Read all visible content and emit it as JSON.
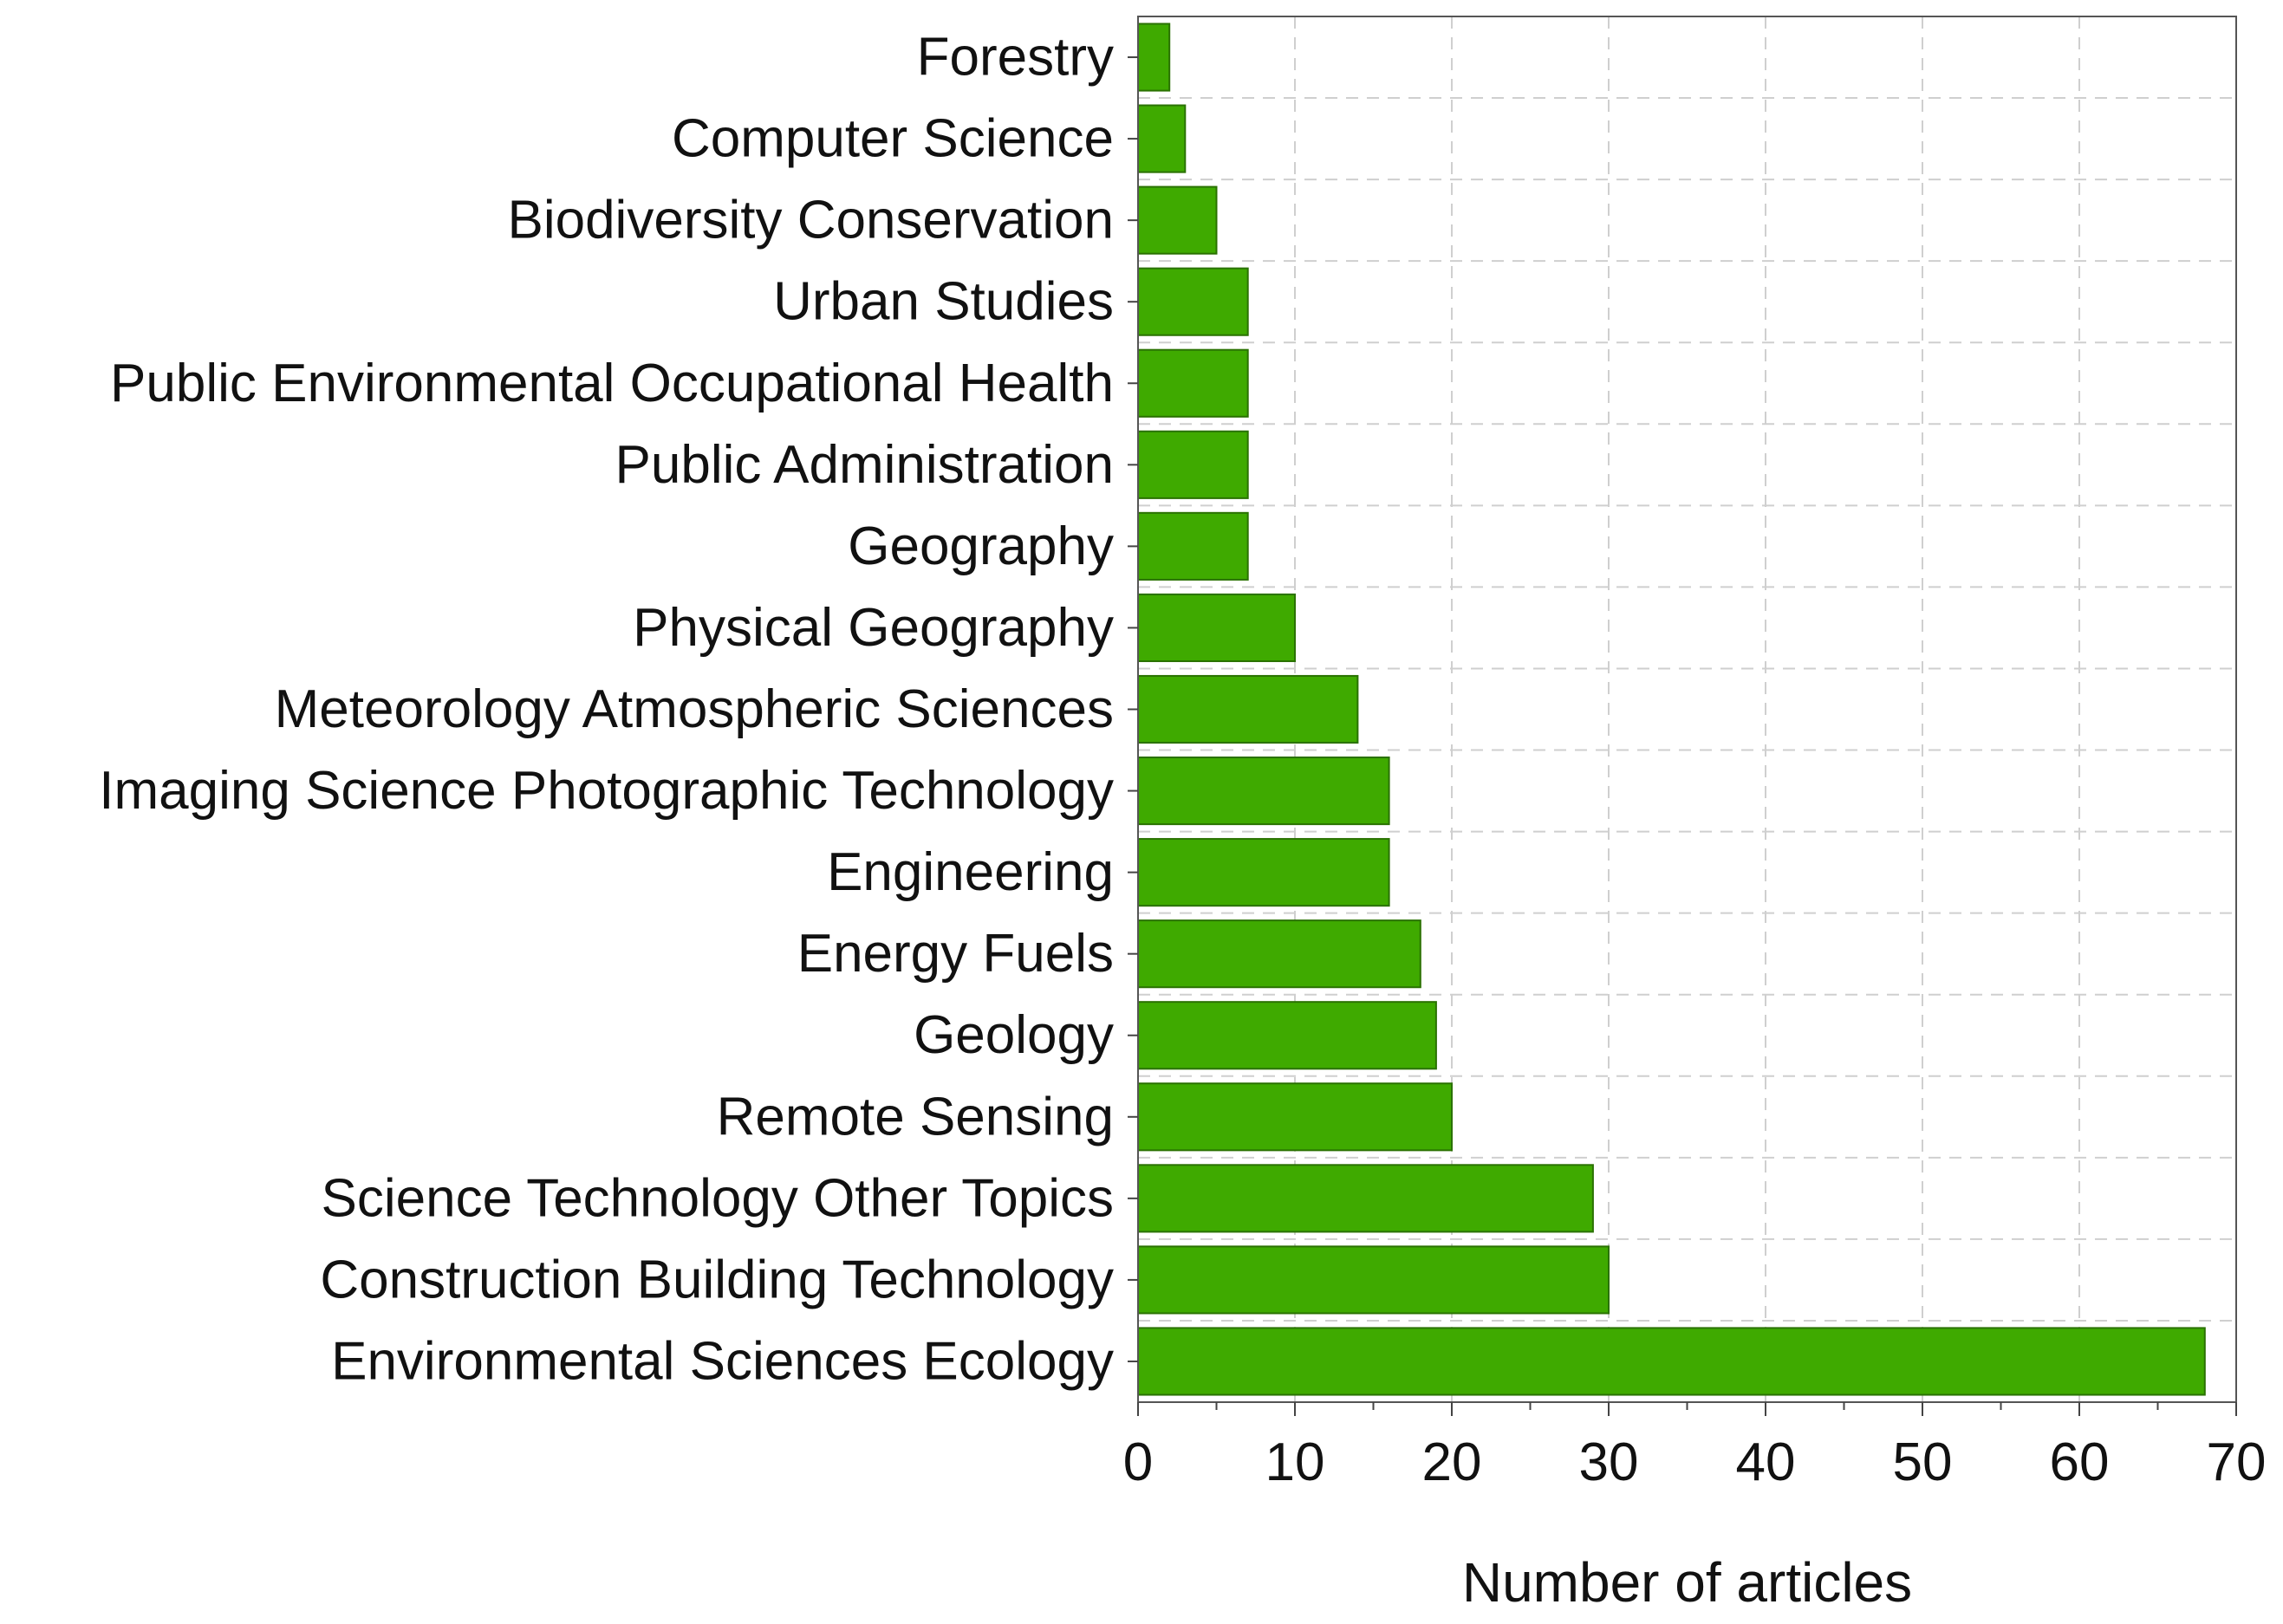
{
  "chart_data": {
    "type": "bar",
    "orientation": "horizontal",
    "categories": [
      "Forestry",
      "Computer Science",
      "Biodiversity Conservation",
      "Urban Studies",
      "Public Environmental Occupational Health",
      "Public Administration",
      "Geography",
      "Physical Geography",
      "Meteorology Atmospheric Sciences",
      "Imaging Science Photographic Technology",
      "Engineering",
      "Energy Fuels",
      "Geology",
      "Remote Sensing",
      "Science Technology Other Topics",
      "Construction Building Technology",
      "Environmental Sciences Ecology"
    ],
    "values": [
      2,
      3,
      5,
      7,
      7,
      7,
      7,
      10,
      14,
      16,
      16,
      18,
      19,
      20,
      29,
      30,
      68
    ],
    "xlabel": "Number of articles",
    "ylabel": "",
    "xlim": [
      0,
      70
    ],
    "xticks": [
      "0",
      "10",
      "20",
      "30",
      "40",
      "50",
      "60",
      "70"
    ],
    "grid": true,
    "colors": {
      "bar_fill": "#3faa00",
      "bar_stroke": "#2a7200",
      "grid": "#cfcfcf",
      "axis": "#444444"
    }
  }
}
